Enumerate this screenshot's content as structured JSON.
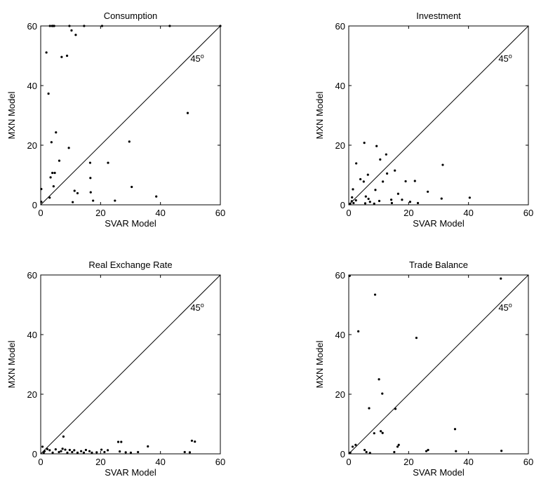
{
  "figure": {
    "background": "#ffffff",
    "ink_color": "#000000"
  },
  "chart_data": [
    {
      "type": "scatter",
      "title": "Consumption",
      "xlabel": "SVAR Model",
      "ylabel": "MXN Model",
      "xlim": [
        0,
        60
      ],
      "ylim": [
        0,
        60
      ],
      "xticks": [
        0,
        20,
        40,
        60
      ],
      "yticks": [
        0,
        20,
        40,
        60
      ],
      "reference_line": {
        "type": "45-degree",
        "label_base": "45",
        "label_sup": "o",
        "label_x": 50,
        "label_y": 48
      },
      "grid": false,
      "legend": "none",
      "points": [
        [
          0.2,
          5.3
        ],
        [
          0.2,
          1.0
        ],
        [
          1.9,
          51.1
        ],
        [
          2.6,
          37.3
        ],
        [
          3.0,
          2.4
        ],
        [
          3.1,
          60
        ],
        [
          3.3,
          9.2
        ],
        [
          3.6,
          21.0
        ],
        [
          3.8,
          60
        ],
        [
          3.9,
          10.7
        ],
        [
          4.1,
          60
        ],
        [
          4.3,
          6.2
        ],
        [
          4.5,
          60
        ],
        [
          4.7,
          10.7
        ],
        [
          5.1,
          24.3
        ],
        [
          6.2,
          14.8
        ],
        [
          7.0,
          49.6
        ],
        [
          8.8,
          50.0
        ],
        [
          9.4,
          19.1
        ],
        [
          9.6,
          60
        ],
        [
          10.3,
          58.5
        ],
        [
          10.7,
          0.9
        ],
        [
          11.3,
          4.7
        ],
        [
          11.7,
          57.0
        ],
        [
          12.3,
          3.9
        ],
        [
          14.5,
          60
        ],
        [
          16.5,
          14.1
        ],
        [
          16.6,
          9.0
        ],
        [
          16.7,
          4.2
        ],
        [
          17.5,
          1.4
        ],
        [
          20.5,
          60
        ],
        [
          22.5,
          14.1
        ],
        [
          24.8,
          1.4
        ],
        [
          29.6,
          21.2
        ],
        [
          30.4,
          6.0
        ],
        [
          38.6,
          2.8
        ],
        [
          43.1,
          60
        ],
        [
          49.1,
          30.8
        ],
        [
          60,
          60
        ]
      ]
    },
    {
      "type": "scatter",
      "title": "Investment",
      "xlabel": "SVAR Model",
      "ylabel": "MXN Model",
      "xlim": [
        0,
        60
      ],
      "ylim": [
        0,
        60
      ],
      "xticks": [
        0,
        20,
        40,
        60
      ],
      "yticks": [
        0,
        20,
        40,
        60
      ],
      "reference_line": {
        "type": "45-degree",
        "label_base": "45",
        "label_sup": "o",
        "label_x": 50,
        "label_y": 48
      },
      "grid": false,
      "legend": "none",
      "points": [
        [
          0.5,
          0.4
        ],
        [
          1.0,
          1.2
        ],
        [
          1.1,
          2.5
        ],
        [
          1.4,
          5.2
        ],
        [
          1.6,
          0.6
        ],
        [
          2.4,
          1.5
        ],
        [
          2.5,
          13.9
        ],
        [
          3.9,
          8.6
        ],
        [
          5.0,
          7.8
        ],
        [
          5.2,
          20.8
        ],
        [
          5.5,
          0.5
        ],
        [
          5.7,
          2.8
        ],
        [
          6.4,
          10.1
        ],
        [
          6.6,
          2.0
        ],
        [
          7.1,
          1.0
        ],
        [
          8.5,
          0.4
        ],
        [
          8.9,
          5.0
        ],
        [
          9.3,
          19.7
        ],
        [
          10.2,
          1.3
        ],
        [
          10.5,
          15.2
        ],
        [
          11.4,
          7.8
        ],
        [
          12.5,
          16.9
        ],
        [
          12.8,
          10.5
        ],
        [
          14.2,
          1.7
        ],
        [
          14.4,
          0.6
        ],
        [
          15.4,
          11.5
        ],
        [
          16.5,
          3.7
        ],
        [
          17.8,
          1.7
        ],
        [
          19.0,
          7.9
        ],
        [
          20.5,
          1.0
        ],
        [
          22.1,
          8.0
        ],
        [
          23.1,
          0.6
        ],
        [
          26.4,
          4.4
        ],
        [
          31.0,
          2.1
        ],
        [
          31.4,
          13.4
        ],
        [
          40.4,
          2.4
        ]
      ]
    },
    {
      "type": "scatter",
      "title": "Real Exchange Rate",
      "xlabel": "SVAR Model",
      "ylabel": "MXN Model",
      "xlim": [
        0,
        60
      ],
      "ylim": [
        0,
        60
      ],
      "xticks": [
        0,
        20,
        40,
        60
      ],
      "yticks": [
        0,
        20,
        40,
        60
      ],
      "reference_line": {
        "type": "45-degree",
        "label_base": "45",
        "label_sup": "o",
        "label_x": 50,
        "label_y": 48
      },
      "grid": false,
      "legend": "none",
      "points": [
        [
          0.6,
          2.4
        ],
        [
          1.0,
          0.3
        ],
        [
          1.3,
          0.9
        ],
        [
          2.2,
          1.6
        ],
        [
          3.0,
          1.2
        ],
        [
          4.0,
          0.4
        ],
        [
          5.0,
          1.5
        ],
        [
          6.1,
          0.6
        ],
        [
          6.8,
          0.9
        ],
        [
          7.3,
          1.7
        ],
        [
          7.6,
          5.8
        ],
        [
          8.2,
          1.4
        ],
        [
          8.9,
          0.4
        ],
        [
          9.7,
          1.3
        ],
        [
          10.5,
          0.6
        ],
        [
          11.2,
          1.2
        ],
        [
          12.3,
          0.4
        ],
        [
          13.5,
          0.9
        ],
        [
          14.4,
          0.4
        ],
        [
          15.1,
          1.3
        ],
        [
          16.3,
          0.9
        ],
        [
          17.1,
          0.4
        ],
        [
          18.7,
          0.5
        ],
        [
          20.3,
          1.4
        ],
        [
          21.3,
          0.6
        ],
        [
          22.4,
          1.2
        ],
        [
          25.9,
          4.0
        ],
        [
          26.4,
          0.8
        ],
        [
          26.9,
          4.0
        ],
        [
          28.4,
          0.5
        ],
        [
          30.1,
          0.4
        ],
        [
          32.5,
          0.6
        ],
        [
          35.8,
          2.5
        ],
        [
          48.1,
          0.6
        ],
        [
          49.8,
          0.5
        ],
        [
          50.5,
          4.4
        ],
        [
          51.5,
          4.1
        ]
      ]
    },
    {
      "type": "scatter",
      "title": "Trade Balance",
      "xlabel": "SVAR Model",
      "ylabel": "MXN Model",
      "xlim": [
        0,
        60
      ],
      "ylim": [
        0,
        60
      ],
      "xticks": [
        0,
        20,
        40,
        60
      ],
      "yticks": [
        0,
        20,
        40,
        60
      ],
      "reference_line": {
        "type": "45-degree",
        "label_base": "45",
        "label_sup": "o",
        "label_x": 50,
        "label_y": 48
      },
      "grid": false,
      "legend": "none",
      "points": [
        [
          0.3,
          59.7
        ],
        [
          0.5,
          0.4
        ],
        [
          1.3,
          2.4
        ],
        [
          2.3,
          3.0
        ],
        [
          3.2,
          41.1
        ],
        [
          5.3,
          1.3
        ],
        [
          5.9,
          0.6
        ],
        [
          6.8,
          15.3
        ],
        [
          7.1,
          0.3
        ],
        [
          8.5,
          6.9
        ],
        [
          8.8,
          53.4
        ],
        [
          10.1,
          25.0
        ],
        [
          10.7,
          7.6
        ],
        [
          11.2,
          20.2
        ],
        [
          11.3,
          7.0
        ],
        [
          15.2,
          0.6
        ],
        [
          15.6,
          15.1
        ],
        [
          16.3,
          2.4
        ],
        [
          16.7,
          3.0
        ],
        [
          22.6,
          38.9
        ],
        [
          25.9,
          0.9
        ],
        [
          26.5,
          1.3
        ],
        [
          35.5,
          8.3
        ],
        [
          35.8,
          0.9
        ],
        [
          50.8,
          58.8
        ],
        [
          51.0,
          1.0
        ]
      ]
    }
  ]
}
